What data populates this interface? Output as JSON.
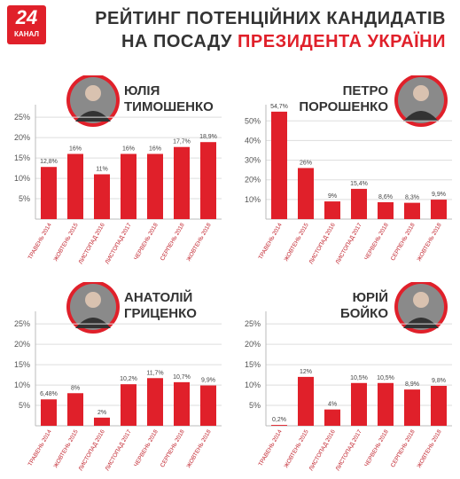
{
  "header": {
    "logo_number": "24",
    "logo_text": "КАНАЛ",
    "title_line1": "РЕЙТИНГ ПОТЕНЦІЙНИХ КАНДИДАТІВ",
    "title_line2": "НА ПОСАДУ",
    "title_line2_highlight": "ПРЕЗИДЕНТА УКРАЇНИ"
  },
  "chart_data": [
    {
      "type": "bar",
      "title": "ЮЛІЯ ТИМОШЕНКО",
      "color": "#e0202a",
      "grid": true,
      "categories": [
        "ТРАВЕНЬ 2014",
        "ЖОВТЕНЬ 2015",
        "ЛИСТОПАД 2016",
        "ЛИСТОПАД 2017",
        "ЧЕРВЕНЬ 2018",
        "СЕРПЕНЬ 2018",
        "ЖОВТЕНЬ 2018"
      ],
      "values": [
        12.8,
        16,
        11,
        16,
        16,
        17.7,
        18.9
      ],
      "value_labels": [
        "12,8%",
        "16%",
        "11%",
        "16%",
        "16%",
        "17,7%",
        "18,9%"
      ],
      "ylim": [
        0,
        27
      ],
      "yticks": [
        {
          "value": 5,
          "label": "5%"
        },
        {
          "value": 10,
          "label": "10%"
        },
        {
          "value": 15,
          "label": "15%"
        },
        {
          "value": 20,
          "label": "20%"
        },
        {
          "value": 25,
          "label": "25%"
        }
      ]
    },
    {
      "type": "bar",
      "title": "ПЕТРО ПОРОШЕНКО",
      "color": "#e0202a",
      "grid": true,
      "categories": [
        "ТРАВЕНЬ 2014",
        "ЖОВТЕНЬ 2015",
        "ЛИСТОПАД 2016",
        "ЛИСТОПАД 2017",
        "ЧЕРВЕНЬ 2018",
        "СЕРПЕНЬ 2018",
        "ЖОВТЕНЬ 2018"
      ],
      "values": [
        54.7,
        26,
        9,
        15.4,
        8.6,
        8.3,
        9.9
      ],
      "value_labels": [
        "54,7%",
        "26%",
        "9%",
        "15,4%",
        "8,6%",
        "8,3%",
        "9,9%"
      ],
      "ylim": [
        0,
        56
      ],
      "yticks": [
        {
          "value": 10,
          "label": "10%"
        },
        {
          "value": 20,
          "label": "20%"
        },
        {
          "value": 30,
          "label": "30%"
        },
        {
          "value": 40,
          "label": "40%"
        },
        {
          "value": 50,
          "label": "50%"
        }
      ]
    },
    {
      "type": "bar",
      "title": "АНАТОЛІЙ ГРИЦЕНКО",
      "color": "#e0202a",
      "grid": true,
      "categories": [
        "ТРАВЕНЬ 2014",
        "ЖОВТЕНЬ 2015",
        "ЛИСТОПАД 2016",
        "ЛИСТОПАД 2017",
        "ЧЕРВЕНЬ 2018",
        "СЕРПЕНЬ 2018",
        "ЖОВТЕНЬ 2018"
      ],
      "values": [
        6.48,
        8,
        2,
        10.2,
        11.7,
        10.7,
        9.9
      ],
      "value_labels": [
        "6,48%",
        "8%",
        "2%",
        "10,2%",
        "11,7%",
        "10,7%",
        "9,9%"
      ],
      "ylim": [
        0,
        27
      ],
      "yticks": [
        {
          "value": 5,
          "label": "5%"
        },
        {
          "value": 10,
          "label": "10%"
        },
        {
          "value": 15,
          "label": "15%"
        },
        {
          "value": 20,
          "label": "20%"
        },
        {
          "value": 25,
          "label": "25%"
        }
      ]
    },
    {
      "type": "bar",
      "title": "ЮРІЙ БОЙКО",
      "color": "#e0202a",
      "grid": true,
      "categories": [
        "ТРАВЕНЬ 2014",
        "ЖОВТЕНЬ 2015",
        "ЛИСТОПАД 2016",
        "ЛИСТОПАД 2017",
        "ЧЕРВЕНЬ 2018",
        "СЕРПЕНЬ 2018",
        "ЖОВТЕНЬ 2018"
      ],
      "values": [
        0.2,
        12,
        4,
        10.5,
        10.5,
        8.9,
        9.8
      ],
      "value_labels": [
        "0,2%",
        "12%",
        "4%",
        "10,5%",
        "10,5%",
        "8,9%",
        "9,8%"
      ],
      "ylim": [
        0,
        27
      ],
      "yticks": [
        {
          "value": 5,
          "label": "5%"
        },
        {
          "value": 10,
          "label": "10%"
        },
        {
          "value": 15,
          "label": "15%"
        },
        {
          "value": 20,
          "label": "20%"
        },
        {
          "value": 25,
          "label": "25%"
        }
      ]
    }
  ]
}
